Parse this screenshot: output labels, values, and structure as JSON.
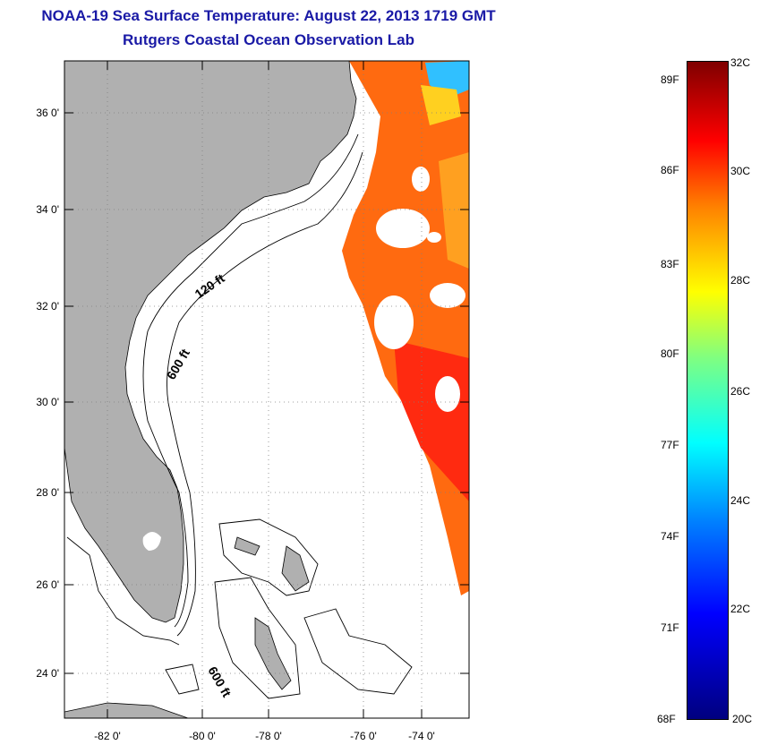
{
  "title": "NOAA-19 Sea Surface Temperature:  August 22, 2013 1719 GMT",
  "subtitle": "Rutgers Coastal Ocean Observation Lab",
  "map": {
    "lat_ticks": [
      "36 0'",
      "34 0'",
      "32 0'",
      "30 0'",
      "28 0'",
      "26 0'",
      "24 0'"
    ],
    "lon_ticks": [
      "-82 0'",
      "-80 0'",
      "-78 0'",
      "-76 0'",
      "-74 0'"
    ],
    "contour_labels": [
      "120 ft",
      "600 ft",
      "600 ft"
    ],
    "land_color": "#b0b0b0"
  },
  "colorbar": {
    "fahrenheit": [
      "89F",
      "86F",
      "83F",
      "80F",
      "77F",
      "74F",
      "71F",
      "68F"
    ],
    "celsius": [
      "32C",
      "30C",
      "28C",
      "26C",
      "24C",
      "22C",
      "20C"
    ]
  }
}
